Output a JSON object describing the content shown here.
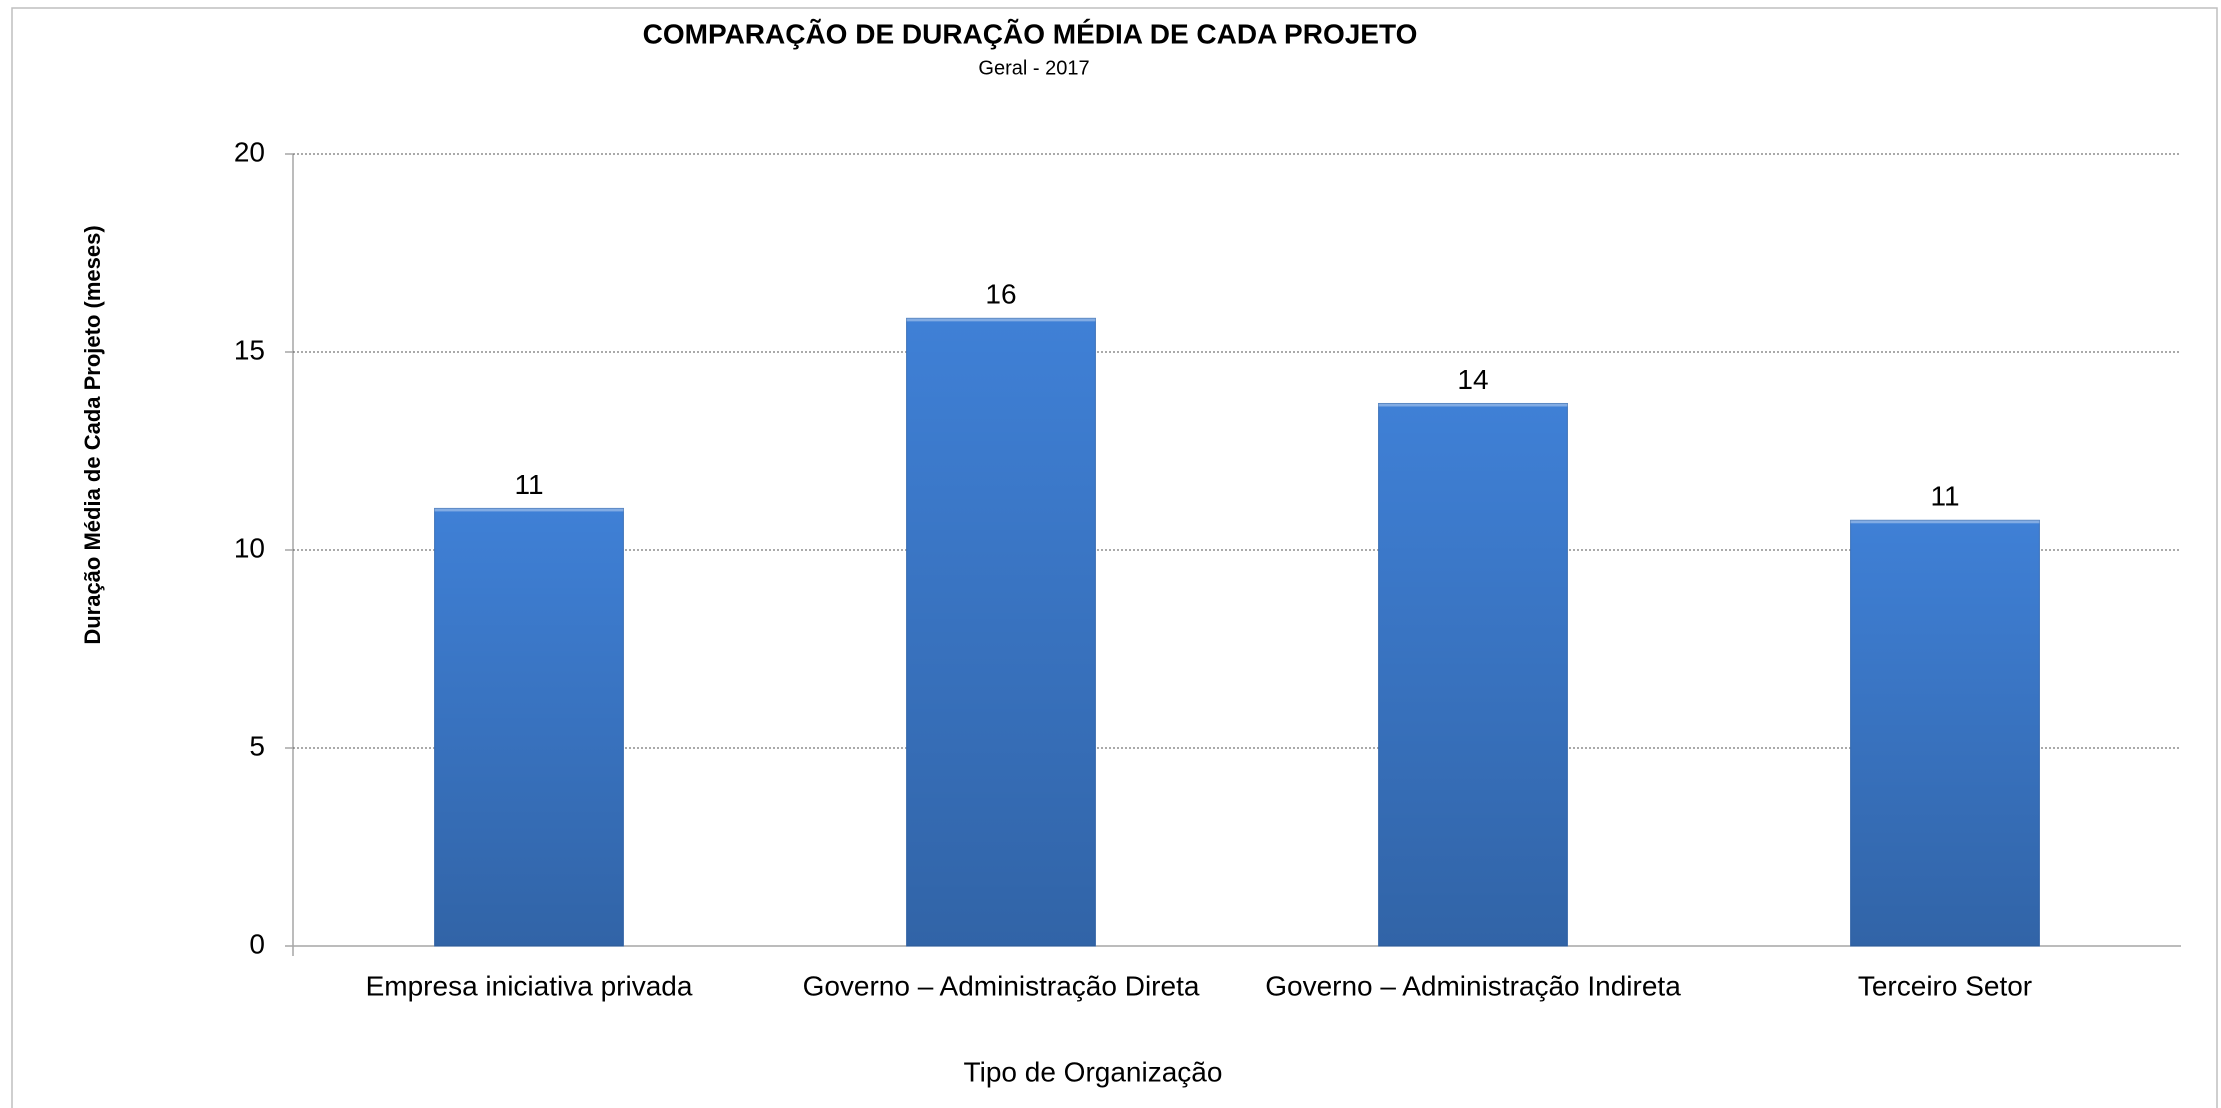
{
  "chart_data": {
    "type": "bar",
    "title": "COMPARAÇÃO DE DURAÇÃO MÉDIA DE CADA PROJETO",
    "subtitle": "Geral - 2017",
    "y_label": "Duração Média de Cada Projeto (meses)",
    "x_label": "Tipo de Organização",
    "categories": [
      "Empresa iniciativa privada",
      "Governo – Administração Direta",
      "Governo – Administração Indireta",
      "Terceiro Setor"
    ],
    "values": [
      11.05,
      15.85,
      13.7,
      10.75
    ],
    "value_labels": [
      "11",
      "16",
      "14",
      "11"
    ],
    "color": "#3f80d6",
    "ylim": [
      0,
      20
    ],
    "yticks": [
      0,
      5,
      10,
      15,
      20
    ],
    "grid": true
  }
}
